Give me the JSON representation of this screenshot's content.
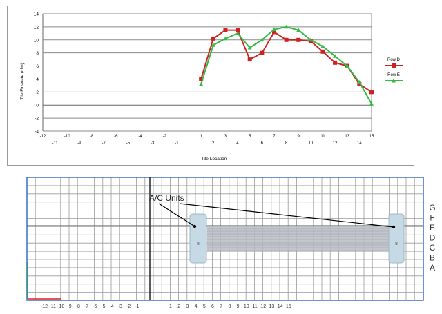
{
  "chart_data": {
    "type": "line",
    "title": "",
    "xlabel": "Tile Location",
    "ylabel": "Tile Flowrate (cfm)",
    "ylim": [
      -4,
      14
    ],
    "yticks": [
      14,
      12,
      10,
      8,
      6,
      4,
      2,
      0,
      -2,
      -4
    ],
    "x_ticks_upper": [
      "-12",
      "-10",
      "-8",
      "-6",
      "-4",
      "-2",
      "1",
      "3",
      "5",
      "7",
      "9",
      "11",
      "13",
      "15"
    ],
    "x_ticks_lower": [
      "-11",
      "-9",
      "-7",
      "-5",
      "-3",
      "-1",
      "2",
      "4",
      "6",
      "8",
      "10",
      "12",
      "14"
    ],
    "legend_position": "right",
    "grid": true,
    "series": [
      {
        "name": "Row D",
        "color": "#cc2222",
        "marker": "square",
        "x": [
          1,
          2,
          3,
          4,
          5,
          6,
          7,
          8,
          9,
          10,
          11,
          12,
          13,
          14,
          15
        ],
        "y": [
          4.0,
          10.2,
          11.5,
          11.5,
          7.0,
          8.0,
          11.2,
          10.0,
          10.0,
          9.8,
          8.2,
          6.5,
          6.0,
          3.2,
          2.0
        ]
      },
      {
        "name": "Row E",
        "color": "#33bb44",
        "marker": "triangle",
        "x": [
          1,
          2,
          3,
          4,
          5,
          6,
          7,
          8,
          9,
          10,
          11,
          12,
          13,
          14,
          15
        ],
        "y": [
          3.2,
          9.2,
          10.2,
          11.0,
          8.8,
          10.0,
          11.6,
          12.0,
          11.5,
          10.0,
          9.0,
          7.5,
          6.0,
          3.5,
          0.2
        ]
      }
    ]
  },
  "floor_grid": {
    "callout_label": "A/C Units",
    "row_labels": [
      "G",
      "F",
      "E",
      "D",
      "C",
      "B",
      "A"
    ],
    "column_labels": [
      "-12",
      "-11",
      "-10",
      "-9",
      "-8",
      "-7",
      "-6",
      "-5",
      "-4",
      "-3",
      "-2",
      "-1",
      "1",
      "2",
      "3",
      "4",
      "5",
      "6",
      "7",
      "8",
      "9",
      "10",
      "11",
      "12",
      "13",
      "14",
      "15"
    ],
    "unit_left_text": "8",
    "unit_right_text": "8",
    "colors": {
      "border": "#3a6ec8",
      "grid": "#9a9a9a",
      "shaded_band": "#b8bcc4",
      "unit": "#c6dae6",
      "axis_green": "#33aa44",
      "axis_red": "#dd2222"
    }
  }
}
